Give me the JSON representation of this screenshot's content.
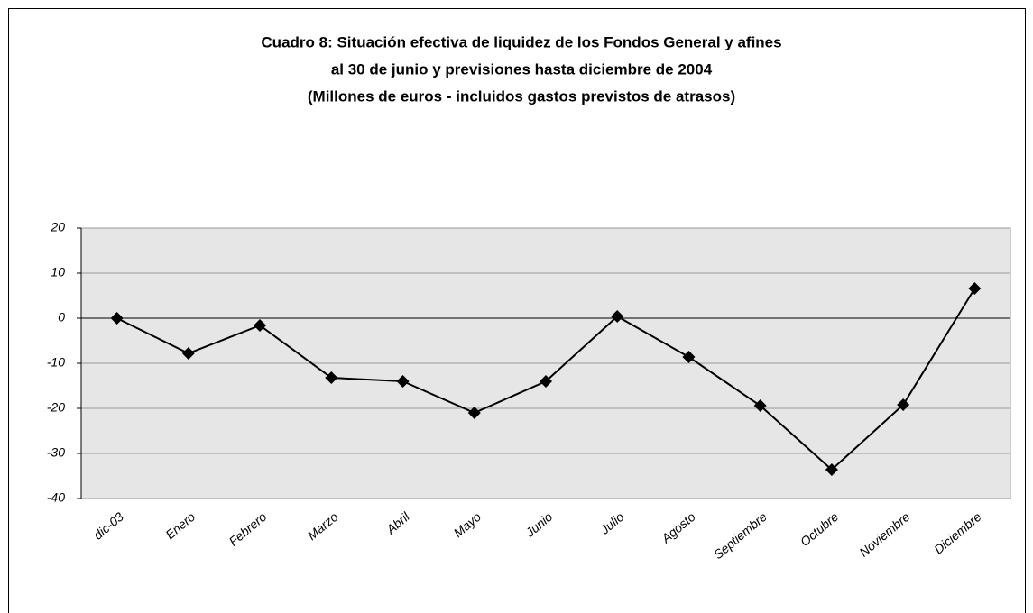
{
  "chart_data": {
    "type": "line",
    "title": [
      "Cuadro 8: Situación efectiva de liquidez de los Fondos General y afines",
      "al 30 de junio y previsiones hasta diciembre de 2004",
      "(Millones de euros - incluidos gastos previstos de atrasos)"
    ],
    "categories": [
      "dic-03",
      "Enero",
      "Febrero",
      "Marzo",
      "Abril",
      "Mayo",
      "Junio",
      "Julio",
      "Agosto",
      "Septiembre",
      "Octubre",
      "Noviembre",
      "Diciembre"
    ],
    "values": [
      0,
      -7.8,
      -1.6,
      -13.2,
      -14,
      -21,
      -14,
      0.4,
      -8.6,
      -19.4,
      -33.6,
      -19.2,
      6.6
    ],
    "color": "#000000",
    "ylim": [
      -40,
      20
    ],
    "yticks": [
      -40,
      -30,
      -20,
      -10,
      0,
      10,
      20
    ],
    "grid": true
  }
}
